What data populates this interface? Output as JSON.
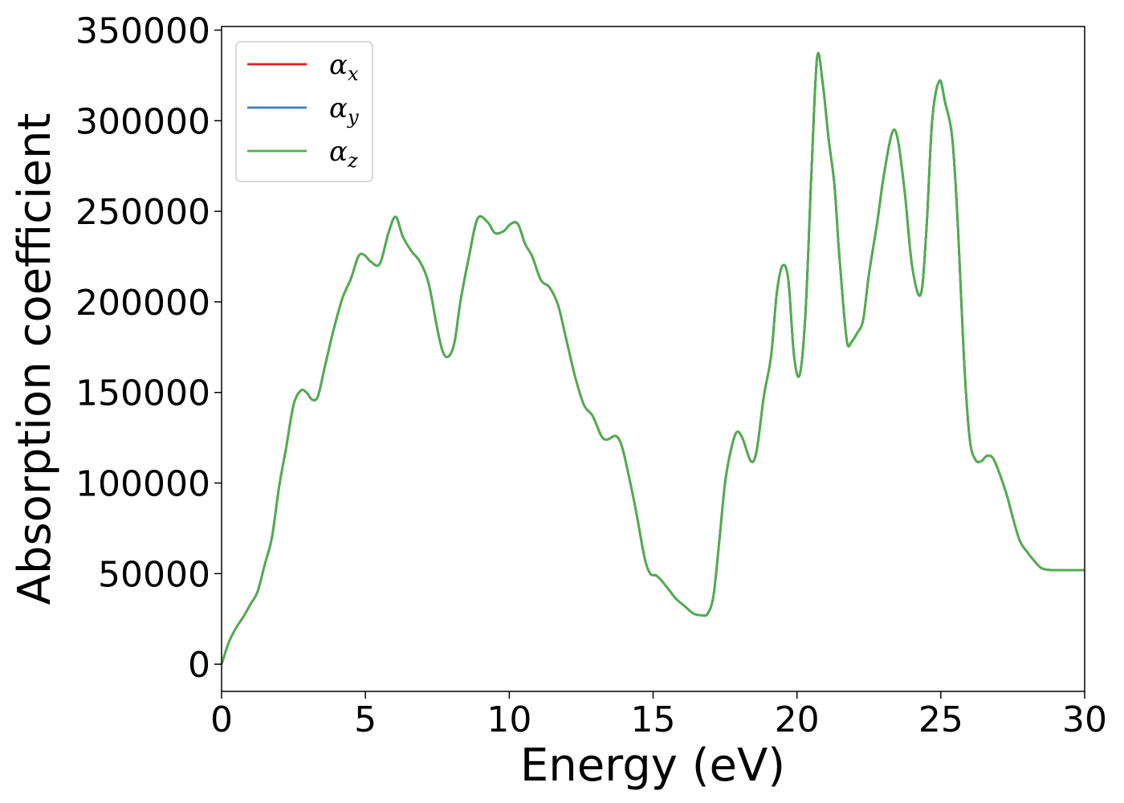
{
  "chart_data": {
    "type": "line",
    "title": "",
    "xlabel": "Energy (eV)",
    "ylabel": "Absorption coefficient",
    "xlim": [
      0,
      30
    ],
    "ylim": [
      -15000,
      352000
    ],
    "xticks": [
      0,
      5,
      10,
      15,
      20,
      25,
      30
    ],
    "xtick_labels": [
      "0",
      "5",
      "10",
      "15",
      "20",
      "25",
      "30"
    ],
    "yticks": [
      0,
      50000,
      100000,
      150000,
      200000,
      250000,
      300000,
      350000
    ],
    "ytick_labels": [
      "0",
      "50000",
      "100000",
      "150000",
      "200000",
      "250000",
      "300000",
      "350000"
    ],
    "grid": false,
    "legend_position": "top-left",
    "x": [
      0,
      0.25,
      0.5,
      0.75,
      1.0,
      1.25,
      1.5,
      1.75,
      2.0,
      2.25,
      2.5,
      2.75,
      2.95,
      3.15,
      3.35,
      3.6,
      3.9,
      4.2,
      4.5,
      4.75,
      4.95,
      5.2,
      5.5,
      5.8,
      6.05,
      6.3,
      6.6,
      6.9,
      7.2,
      7.5,
      7.7,
      7.9,
      8.1,
      8.3,
      8.6,
      8.9,
      9.25,
      9.5,
      9.8,
      10.05,
      10.3,
      10.55,
      10.8,
      11.1,
      11.4,
      11.7,
      12.0,
      12.3,
      12.6,
      12.9,
      13.2,
      13.4,
      13.7,
      13.9,
      14.1,
      14.4,
      14.7,
      14.9,
      15.1,
      15.3,
      15.6,
      15.8,
      16.1,
      16.4,
      16.7,
      16.9,
      17.1,
      17.3,
      17.5,
      17.7,
      17.9,
      18.1,
      18.4,
      18.6,
      18.85,
      19.1,
      19.3,
      19.5,
      19.7,
      19.9,
      20.1,
      20.3,
      20.5,
      20.7,
      20.9,
      21.1,
      21.3,
      21.45,
      21.6,
      21.75,
      21.9,
      22.1,
      22.3,
      22.5,
      22.8,
      23.0,
      23.3,
      23.5,
      23.75,
      24.0,
      24.3,
      24.5,
      24.7,
      24.95,
      25.15,
      25.4,
      25.6,
      25.8,
      26.0,
      26.2,
      26.4,
      26.6,
      26.8,
      27.0,
      27.3,
      27.5,
      27.75,
      28.0,
      28.25,
      28.5,
      28.8,
      29.1,
      29.4,
      29.7,
      30.0
    ],
    "series": [
      {
        "name": "α_x",
        "color": "#e41a1c",
        "values": [
          0,
          12000,
          20000,
          26000,
          33000,
          40000,
          55000,
          70000,
          98000,
          120000,
          143000,
          151000,
          150000,
          146000,
          148000,
          165000,
          185000,
          202000,
          213000,
          225000,
          226000,
          222000,
          221000,
          238000,
          247000,
          236000,
          228000,
          222000,
          210000,
          185000,
          172000,
          170000,
          178000,
          200000,
          225000,
          246000,
          244000,
          238000,
          239000,
          243000,
          243000,
          232000,
          225000,
          212000,
          208000,
          198000,
          178000,
          158000,
          143000,
          137000,
          126000,
          124000,
          126000,
          121000,
          108000,
          85000,
          59000,
          50000,
          49000,
          46000,
          40000,
          36000,
          32000,
          28000,
          27000,
          28000,
          38000,
          68000,
          100000,
          118000,
          128000,
          125000,
          112000,
          118000,
          148000,
          170000,
          205000,
          220000,
          212000,
          170000,
          160000,
          195000,
          270000,
          335000,
          320000,
          290000,
          265000,
          230000,
          200000,
          177000,
          178000,
          183000,
          190000,
          215000,
          245000,
          268000,
          293000,
          290000,
          260000,
          220000,
          204000,
          240000,
          300000,
          322000,
          310000,
          290000,
          240000,
          170000,
          125000,
          113000,
          112000,
          115000,
          114000,
          107000,
          93000,
          81000,
          68000,
          62000,
          57000,
          53000,
          52000,
          52000,
          52000,
          52000,
          52000
        ]
      },
      {
        "name": "α_y",
        "color": "#377eb8",
        "values": [
          0,
          12000,
          20000,
          26000,
          33000,
          40000,
          55000,
          70000,
          98000,
          120000,
          143000,
          151000,
          150000,
          146000,
          148000,
          165000,
          185000,
          202000,
          213000,
          225000,
          226000,
          222000,
          221000,
          238000,
          247000,
          236000,
          228000,
          222000,
          210000,
          185000,
          172000,
          170000,
          178000,
          200000,
          225000,
          246000,
          244000,
          238000,
          239000,
          243000,
          243000,
          232000,
          225000,
          212000,
          208000,
          198000,
          178000,
          158000,
          143000,
          137000,
          126000,
          124000,
          126000,
          121000,
          108000,
          85000,
          59000,
          50000,
          49000,
          46000,
          40000,
          36000,
          32000,
          28000,
          27000,
          28000,
          38000,
          68000,
          100000,
          118000,
          128000,
          125000,
          112000,
          118000,
          148000,
          170000,
          205000,
          220000,
          212000,
          170000,
          160000,
          195000,
          270000,
          335000,
          320000,
          290000,
          265000,
          230000,
          200000,
          177000,
          178000,
          183000,
          190000,
          215000,
          245000,
          268000,
          293000,
          290000,
          260000,
          220000,
          204000,
          240000,
          300000,
          322000,
          310000,
          290000,
          240000,
          170000,
          125000,
          113000,
          112000,
          115000,
          114000,
          107000,
          93000,
          81000,
          68000,
          62000,
          57000,
          53000,
          52000,
          52000,
          52000,
          52000,
          52000
        ]
      },
      {
        "name": "α_z",
        "color": "#4daf4a",
        "values": [
          0,
          12000,
          20000,
          26000,
          33000,
          40000,
          55000,
          70000,
          98000,
          120000,
          143000,
          151000,
          150000,
          146000,
          148000,
          165000,
          185000,
          202000,
          213000,
          225000,
          226000,
          222000,
          221000,
          238000,
          247000,
          236000,
          228000,
          222000,
          210000,
          185000,
          172000,
          170000,
          178000,
          200000,
          225000,
          246000,
          244000,
          238000,
          239000,
          243000,
          243000,
          232000,
          225000,
          212000,
          208000,
          198000,
          178000,
          158000,
          143000,
          137000,
          126000,
          124000,
          126000,
          121000,
          108000,
          85000,
          59000,
          50000,
          49000,
          46000,
          40000,
          36000,
          32000,
          28000,
          27000,
          28000,
          38000,
          68000,
          100000,
          118000,
          128000,
          125000,
          112000,
          118000,
          148000,
          170000,
          205000,
          220000,
          212000,
          170000,
          160000,
          195000,
          270000,
          335000,
          320000,
          290000,
          265000,
          230000,
          200000,
          177000,
          178000,
          183000,
          190000,
          215000,
          245000,
          268000,
          293000,
          290000,
          260000,
          220000,
          204000,
          240000,
          300000,
          322000,
          310000,
          290000,
          240000,
          170000,
          125000,
          113000,
          112000,
          115000,
          114000,
          107000,
          93000,
          81000,
          68000,
          62000,
          57000,
          53000,
          52000,
          52000,
          52000,
          52000,
          52000
        ]
      }
    ]
  }
}
